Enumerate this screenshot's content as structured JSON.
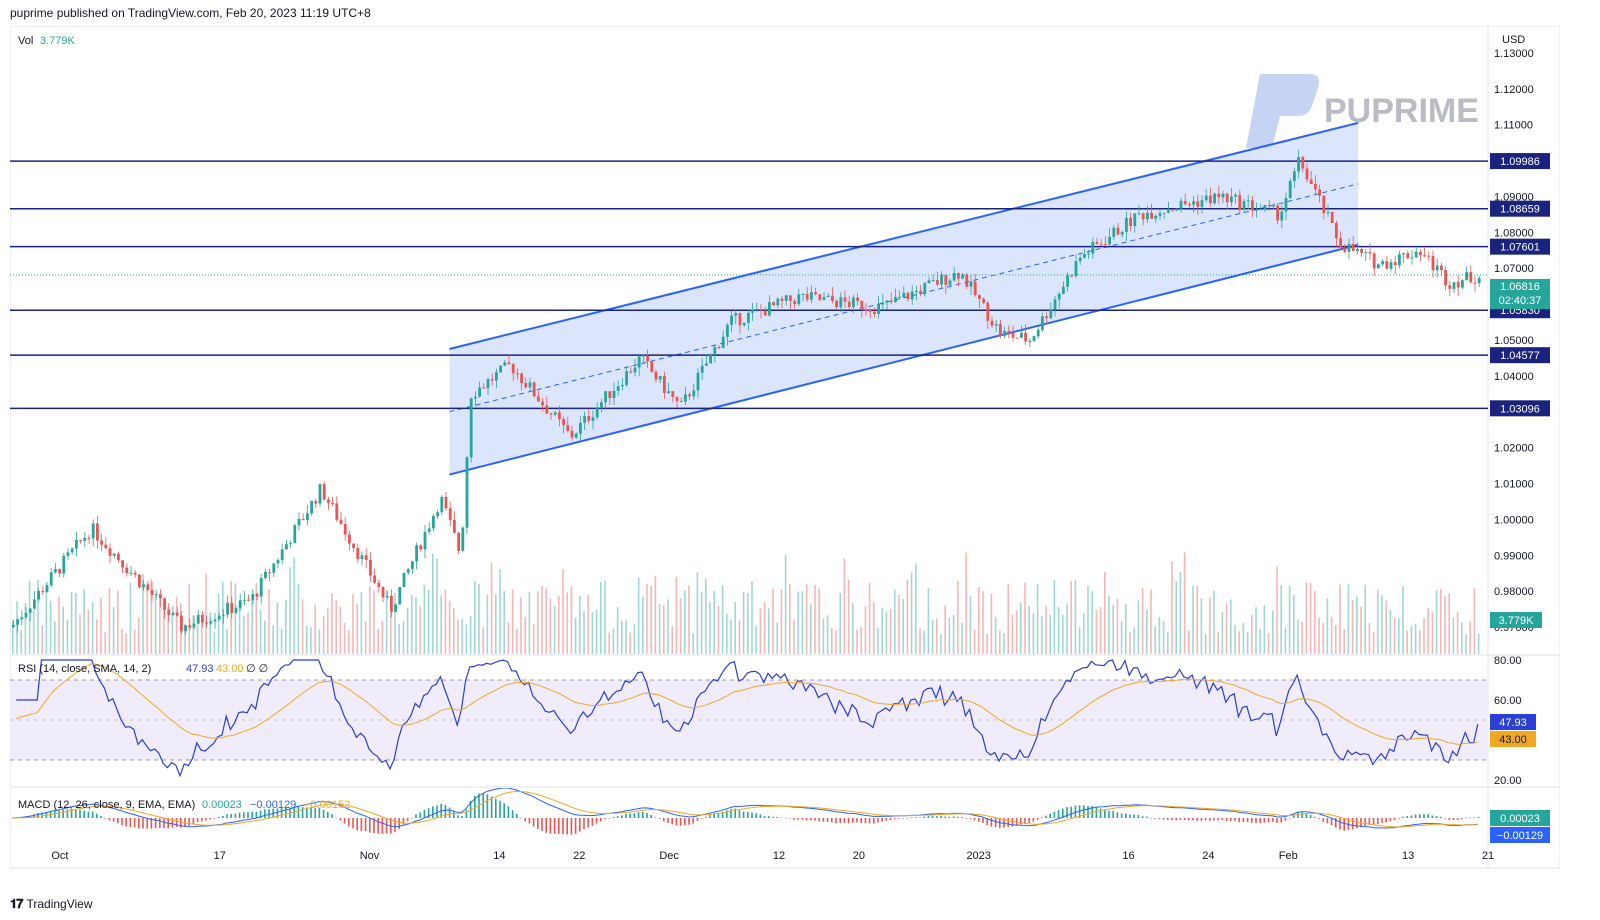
{
  "header": {
    "published": "puprime published on TradingView.com, Feb 20, 2023 11:19 UTC+8"
  },
  "footer": {
    "logo_text": "TradingView"
  },
  "watermark": {
    "text": "PUPRIME"
  },
  "colors": {
    "up": "#26a69a",
    "down": "#ef5350",
    "level_line": "#1a237e",
    "channel": "#2962ff",
    "channel_fill": "#d5e0fb",
    "rsi_line": "#2b3ed6",
    "rsi_sma": "#f0a823",
    "rsi_band": "#f1ecfb",
    "macd_line": "#2962ff",
    "signal_line": "#f0a823"
  },
  "main": {
    "volume_label": "Vol",
    "volume_value": "3.779K",
    "currency": "USD",
    "price_ticks": [
      "1.13000",
      "1.12000",
      "1.11000",
      "1.09000",
      "1.08000",
      "1.07000",
      "1.06000",
      "1.05000",
      "1.04000",
      "1.02000",
      "1.01000",
      "1.00000",
      "0.99000",
      "0.98000",
      "0.97000"
    ],
    "levels": [
      "1.09986",
      "1.08659",
      "1.07601",
      "1.05830",
      "1.04577",
      "1.03096"
    ],
    "current_price": "1.06816",
    "countdown": "02:40:37",
    "volume_badge": "3.779K"
  },
  "rsi": {
    "label": "RSI (14, close, SMA, 14, 2)",
    "value1": "47.93",
    "value2": "43.00",
    "extra": "∅ ∅",
    "ticks": [
      "80.00",
      "60.00",
      "20.00"
    ]
  },
  "macd": {
    "label": "MACD (12, 26, close, 9, EMA, EMA)",
    "value1": "0.00023",
    "value2": "−0.00129",
    "value3": "−0.00152"
  },
  "time_axis": [
    "Oct",
    "17",
    "Nov",
    "14",
    "22",
    "Dec",
    "12",
    "20",
    "2023",
    "16",
    "24",
    "Feb",
    "13",
    "21"
  ],
  "chart_data": {
    "type": "candlestick",
    "symbol_quote": "USD",
    "x_range": [
      "2022-09-26",
      "2023-02-21"
    ],
    "y_range": [
      0.9625,
      1.1375
    ],
    "y_ticks": [
      1.13,
      1.12,
      1.11,
      1.09,
      1.08,
      1.07,
      1.06,
      1.05,
      1.04,
      1.02,
      1.01,
      1.0,
      0.99,
      0.98,
      0.97
    ],
    "horizontal_levels": [
      1.09986,
      1.08659,
      1.07601,
      1.0583,
      1.04577,
      1.03096
    ],
    "last_price": 1.06816,
    "rising_channel": {
      "upper": [
        [
          "2022-11-09",
          1.0475
        ],
        [
          "2023-02-08",
          1.1105
        ]
      ],
      "lower": [
        [
          "2022-11-09",
          1.0125
        ],
        [
          "2023-02-08",
          1.0765
        ]
      ]
    },
    "price_path": [
      [
        "2022-09-26",
        0.97
      ],
      [
        "2022-10-04",
        0.9975
      ],
      [
        "2022-10-13",
        0.97
      ],
      [
        "2022-10-20",
        0.9775
      ],
      [
        "2022-10-27",
        1.0085
      ],
      [
        "2022-11-03",
        0.975
      ],
      [
        "2022-11-08",
        1.006
      ],
      [
        "2022-11-10",
        0.99
      ],
      [
        "2022-11-11",
        1.035
      ],
      [
        "2022-11-15",
        1.043
      ],
      [
        "2022-11-21",
        1.023
      ],
      [
        "2022-11-28",
        1.045
      ],
      [
        "2022-12-02",
        1.031
      ],
      [
        "2022-12-07",
        1.055
      ],
      [
        "2022-12-14",
        1.062
      ],
      [
        "2022-12-22",
        1.059
      ],
      [
        "2022-12-30",
        1.069
      ],
      [
        "2023-01-03",
        1.052
      ],
      [
        "2023-01-06",
        1.05
      ],
      [
        "2023-01-11",
        1.073
      ],
      [
        "2023-01-17",
        1.085
      ],
      [
        "2023-01-25",
        1.09
      ],
      [
        "2023-01-31",
        1.085
      ],
      [
        "2023-02-02",
        1.1
      ],
      [
        "2023-02-06",
        1.077
      ],
      [
        "2023-02-10",
        1.071
      ],
      [
        "2023-02-14",
        1.075
      ],
      [
        "2023-02-17",
        1.066
      ],
      [
        "2023-02-20",
        1.068
      ]
    ],
    "volume_last": "3.779K",
    "rsi": {
      "length": 14,
      "last": 47.93,
      "sma": 43.0,
      "upper_band": 70,
      "mid": 50,
      "lower_band": 30
    },
    "macd": {
      "fast": 12,
      "slow": 26,
      "signal": 9,
      "histogram": 0.00023,
      "macd": -0.00129,
      "signal_value": -0.00152
    }
  }
}
